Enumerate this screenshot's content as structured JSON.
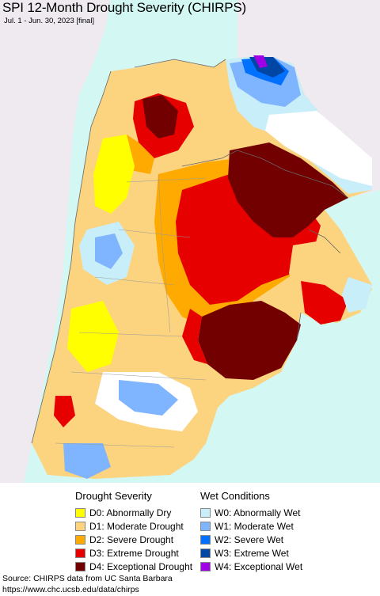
{
  "header": {
    "title": "SPI 12-Month Drought Severity (CHIRPS)",
    "subtitle": "Jul. 1 - Jun. 30, 2023 [final]"
  },
  "colors": {
    "ocean": "#d3f8f4",
    "outside_land": "#eeeaef",
    "no_data": "#ffffff",
    "D0": "#ffff00",
    "D1": "#fcd37f",
    "D2": "#ffaa00",
    "D3": "#e60000",
    "D4": "#730000",
    "W0": "#aaf5ff",
    "W1": "#7fb4ff",
    "W2": "#0070ff",
    "W3": "#0046a5",
    "W4": "#a000e6"
  },
  "legend": {
    "drought": {
      "heading": "Drought Severity",
      "items": [
        {
          "label": "D0: Abnormally Dry",
          "color": "#ffff00"
        },
        {
          "label": "D1: Moderate Drought",
          "color": "#fcd37f"
        },
        {
          "label": "D2: Severe Drought",
          "color": "#ffaa00"
        },
        {
          "label": "D3: Extreme Drought",
          "color": "#e60000"
        },
        {
          "label": "D4: Exceptional Drought",
          "color": "#730000"
        }
      ]
    },
    "wet": {
      "heading": "Wet Conditions",
      "items": [
        {
          "label": "W0: Abnormally Wet",
          "color": "#c8eefa"
        },
        {
          "label": "W1: Moderate Wet",
          "color": "#7fb4ff"
        },
        {
          "label": "W2: Severe Wet",
          "color": "#0070ff"
        },
        {
          "label": "W3: Extreme Wet",
          "color": "#0046a5"
        },
        {
          "label": "W4: Exceptional Wet",
          "color": "#a000e6"
        }
      ]
    }
  },
  "footer": {
    "source_line": "Source: CHIRPS data from UC Santa Barbara",
    "url_line": "https://www.chc.ucsb.edu/data/chirps"
  }
}
